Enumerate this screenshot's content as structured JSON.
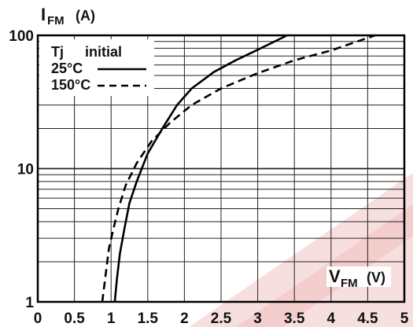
{
  "chart_data": {
    "type": "line",
    "y_axis": {
      "label": "I",
      "subscript": "FM",
      "unit": "(A)",
      "scale": "log",
      "ylim": [
        1,
        100
      ],
      "tick_labels": [
        "1",
        "10",
        "100"
      ]
    },
    "x_axis": {
      "label": "V",
      "subscript": "FM",
      "unit": "(V)",
      "xlim": [
        0,
        5
      ],
      "tick_labels": [
        "0",
        "0.5",
        "1",
        "1.5",
        "2",
        "2.5",
        "3",
        "3.5",
        "4",
        "4.5",
        "5"
      ]
    },
    "grid": true,
    "legend": {
      "position": "top-left",
      "header_left": "Tj",
      "header_right": "initial"
    },
    "series": [
      {
        "name": "25°C",
        "style": "solid",
        "color": "#000000",
        "points": [
          [
            1.05,
            1
          ],
          [
            1.08,
            1.5
          ],
          [
            1.12,
            2.3
          ],
          [
            1.18,
            3.5
          ],
          [
            1.25,
            5.5
          ],
          [
            1.35,
            8
          ],
          [
            1.5,
            13
          ],
          [
            1.7,
            20
          ],
          [
            1.9,
            30
          ],
          [
            2.1,
            40
          ],
          [
            2.4,
            53
          ],
          [
            2.7,
            65
          ],
          [
            3.0,
            78
          ],
          [
            3.4,
            100
          ]
        ]
      },
      {
        "name": "150°C",
        "style": "dashed",
        "color": "#000000",
        "points": [
          [
            0.88,
            1
          ],
          [
            0.92,
            1.5
          ],
          [
            0.97,
            2.5
          ],
          [
            1.03,
            3.5
          ],
          [
            1.1,
            5
          ],
          [
            1.2,
            7.5
          ],
          [
            1.35,
            11
          ],
          [
            1.55,
            16
          ],
          [
            1.8,
            22
          ],
          [
            2.1,
            30
          ],
          [
            2.5,
            40
          ],
          [
            3.0,
            52
          ],
          [
            3.5,
            65
          ],
          [
            4.0,
            77
          ],
          [
            4.6,
            100
          ]
        ]
      }
    ]
  },
  "watermark": {
    "color": "#f2cccc"
  }
}
